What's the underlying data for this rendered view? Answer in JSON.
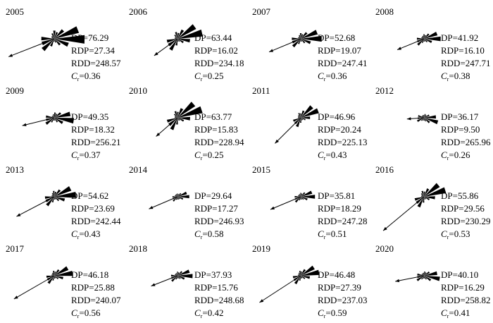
{
  "panels": [
    {
      "year": "2005",
      "dp": "76.29",
      "rdp": "27.34",
      "rdd": "248.57",
      "cr": "0.36"
    },
    {
      "year": "2006",
      "dp": "63.44",
      "rdp": "16.02",
      "rdd": "234.18",
      "cr": "0.25"
    },
    {
      "year": "2007",
      "dp": "52.68",
      "rdp": "19.07",
      "rdd": "247.41",
      "cr": "0.36"
    },
    {
      "year": "2008",
      "dp": "41.92",
      "rdp": "16.10",
      "rdd": "247.71",
      "cr": "0.38"
    },
    {
      "year": "2009",
      "dp": "49.35",
      "rdp": "18.32",
      "rdd": "256.21",
      "cr": "0.37"
    },
    {
      "year": "2010",
      "dp": "63.77",
      "rdp": "15.83",
      "rdd": "228.94",
      "cr": "0.25"
    },
    {
      "year": "2011",
      "dp": "46.96",
      "rdp": "20.24",
      "rdd": "225.13",
      "cr": "0.43"
    },
    {
      "year": "2012",
      "dp": "36.17",
      "rdp": "9.50",
      "rdd": "265.96",
      "cr": "0.26"
    },
    {
      "year": "2013",
      "dp": "54.62",
      "rdp": "23.69",
      "rdd": "242.44",
      "cr": "0.43"
    },
    {
      "year": "2014",
      "dp": "29.64",
      "rdp": "17.27",
      "rdd": "246.93",
      "cr": "0.58"
    },
    {
      "year": "2015",
      "dp": "35.81",
      "rdp": "18.29",
      "rdd": "247.28",
      "cr": "0.51"
    },
    {
      "year": "2016",
      "dp": "55.86",
      "rdp": "29.56",
      "rdd": "230.29",
      "cr": "0.53"
    },
    {
      "year": "2017",
      "dp": "46.18",
      "rdp": "25.88",
      "rdd": "240.07",
      "cr": "0.56"
    },
    {
      "year": "2018",
      "dp": "37.93",
      "rdp": "15.76",
      "rdd": "248.68",
      "cr": "0.42"
    },
    {
      "year": "2019",
      "dp": "46.48",
      "rdp": "27.39",
      "rdd": "237.03",
      "cr": "0.59"
    },
    {
      "year": "2020",
      "dp": "40.10",
      "rdp": "16.29",
      "rdd": "258.82",
      "cr": "0.41"
    }
  ],
  "labels": {
    "dp": "DP=",
    "rdp": "RDP=",
    "rdd": "RDD=",
    "cr_symbol": "C",
    "cr_subscript": "r",
    "cr_eq": "="
  }
}
